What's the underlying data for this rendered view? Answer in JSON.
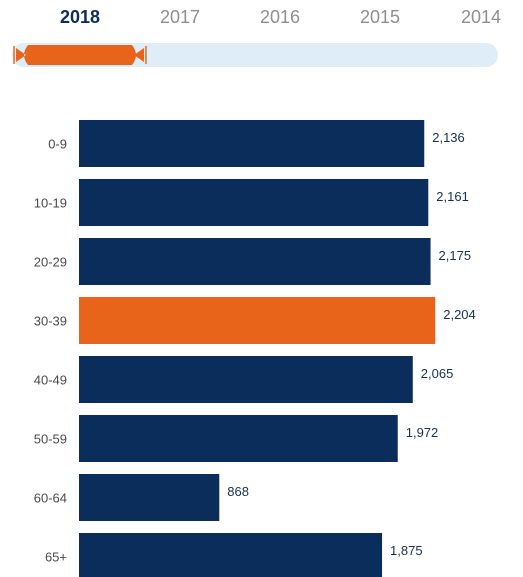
{
  "years": [
    "2018",
    "2017",
    "2016",
    "2015",
    "2014"
  ],
  "selected_year": "2018",
  "colors": {
    "bar": "#0b2d5b",
    "highlight": "#e8641b",
    "track": "#deedf7",
    "active_tab": "#0f2d59",
    "inactive_tab": "#8f8f8f"
  },
  "chart_data": {
    "type": "bar",
    "orientation": "horizontal",
    "categories": [
      "0-9",
      "10-19",
      "20-29",
      "30-39",
      "40-49",
      "50-59",
      "60-64",
      "65+"
    ],
    "values": [
      2136,
      2161,
      2175,
      2204,
      2065,
      1972,
      868,
      1875
    ],
    "value_labels": [
      "2,136",
      "2,161",
      "2,175",
      "2,204",
      "2,065",
      "1,972",
      "868",
      "1,875"
    ],
    "highlight_category": "30-39",
    "xlim": [
      0,
      2450
    ],
    "grid": false,
    "title": "",
    "xlabel": "",
    "ylabel": ""
  }
}
